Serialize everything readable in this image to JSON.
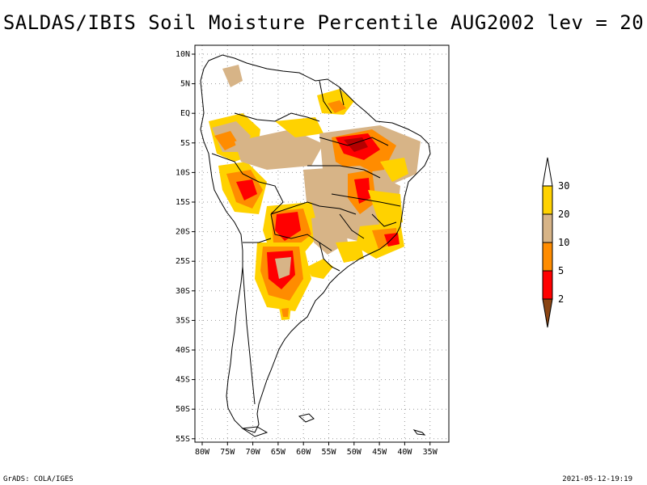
{
  "title": "SALDAS/IBIS Soil Moisture Percentile AUG2002 lev = 20",
  "footer_left": "GrADS: COLA/IGES",
  "footer_right": "2021-05-12-19:19",
  "lat_labels": [
    "10N",
    "5N",
    "EQ",
    "5S",
    "10S",
    "15S",
    "20S",
    "25S",
    "30S",
    "35S",
    "40S",
    "45S",
    "50S",
    "55S"
  ],
  "lon_labels": [
    "80W",
    "75W",
    "70W",
    "65W",
    "60W",
    "55W",
    "50W",
    "45W",
    "40W",
    "35W"
  ],
  "legend": {
    "labels": [
      "30",
      "20",
      "10",
      "5",
      "2"
    ],
    "colors": {
      "above_30": "#ffffff",
      "20_30": "#ffd200",
      "10_20": "#d7b487",
      "5_10": "#ff8c00",
      "2_5": "#ff0000",
      "below_2": "#8b4513"
    }
  },
  "colors": {
    "coast": "#000000",
    "grid": "#999999",
    "darkred": "#b40000"
  }
}
